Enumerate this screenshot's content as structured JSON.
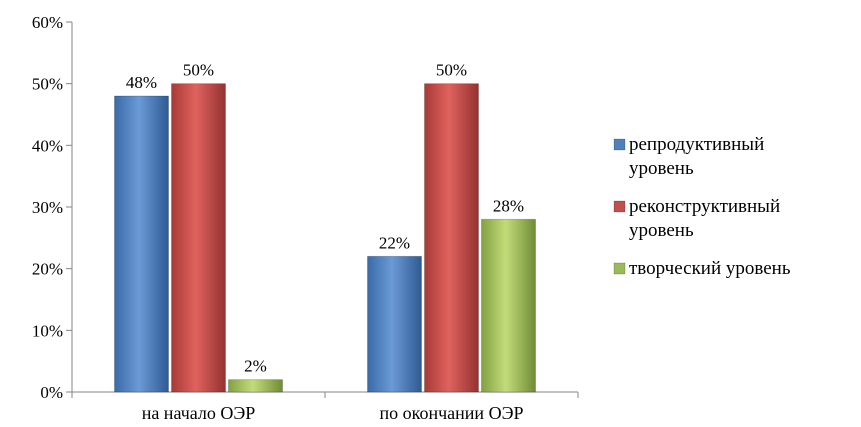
{
  "chart_data": {
    "type": "bar",
    "categories": [
      "на начало ОЭР",
      "по окончании ОЭР"
    ],
    "series": [
      {
        "name": "репродуктивный уровень",
        "values": [
          48,
          22
        ],
        "labels": [
          "48%",
          "22%"
        ],
        "color": "#4f81bd"
      },
      {
        "name": "реконструктивный уровень",
        "values": [
          50,
          50
        ],
        "labels": [
          "50%",
          "50%"
        ],
        "color": "#c0504d"
      },
      {
        "name": "творческий уровень",
        "values": [
          2,
          28
        ],
        "labels": [
          "2%",
          "28%"
        ],
        "color": "#9bbb59"
      }
    ],
    "y_ticks": [
      "0%",
      "10%",
      "20%",
      "30%",
      "40%",
      "50%",
      "60%"
    ],
    "ylim": [
      0,
      60
    ],
    "grid": false,
    "legend_position": "right",
    "title": "",
    "xlabel": "",
    "ylabel": ""
  }
}
